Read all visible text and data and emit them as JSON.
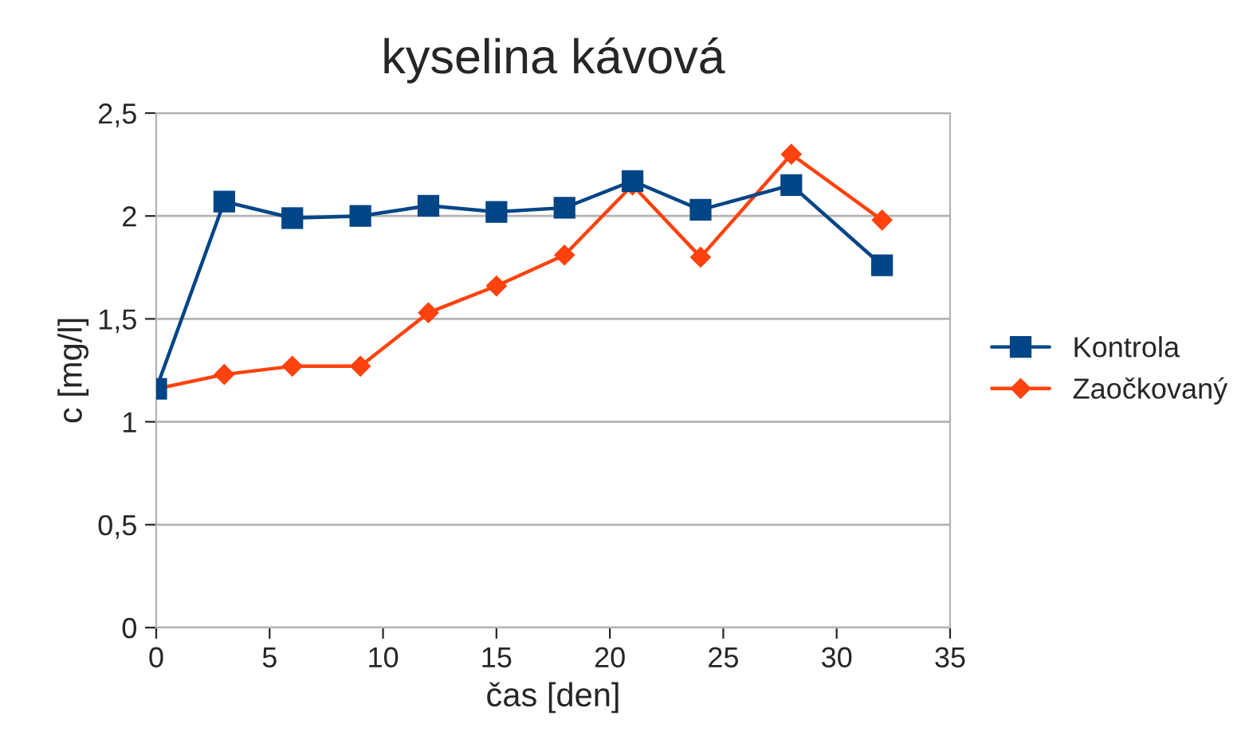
{
  "chart_data": {
    "type": "line",
    "title": "kyselina kávová",
    "xlabel": "čas [den]",
    "ylabel": "c [mg/l]",
    "x": [
      0,
      3,
      6,
      9,
      12,
      15,
      18,
      21,
      24,
      28,
      32
    ],
    "series": [
      {
        "name": "Kontrola",
        "color": "#004586",
        "marker": "square",
        "values": [
          1.16,
          2.07,
          1.99,
          2.0,
          2.05,
          2.02,
          2.04,
          2.17,
          2.03,
          2.15,
          1.76
        ]
      },
      {
        "name": "Zaočkovaný",
        "color": "#ff420e",
        "marker": "diamond",
        "values": [
          1.16,
          1.23,
          1.27,
          1.27,
          1.53,
          1.66,
          1.81,
          2.15,
          1.8,
          2.3,
          1.98
        ]
      }
    ],
    "xlim": [
      0,
      35
    ],
    "xticks": [
      0,
      5,
      10,
      15,
      20,
      25,
      30,
      35
    ],
    "ylim": [
      0,
      2.5
    ],
    "yticks": [
      0,
      {
        "value": 0.5,
        "label": "0,5"
      },
      1,
      {
        "value": 1.5,
        "label": "1,5"
      },
      2,
      {
        "value": 2.5,
        "label": "2,5"
      }
    ],
    "grid": "y",
    "legend": "right",
    "line_style": "solid"
  }
}
